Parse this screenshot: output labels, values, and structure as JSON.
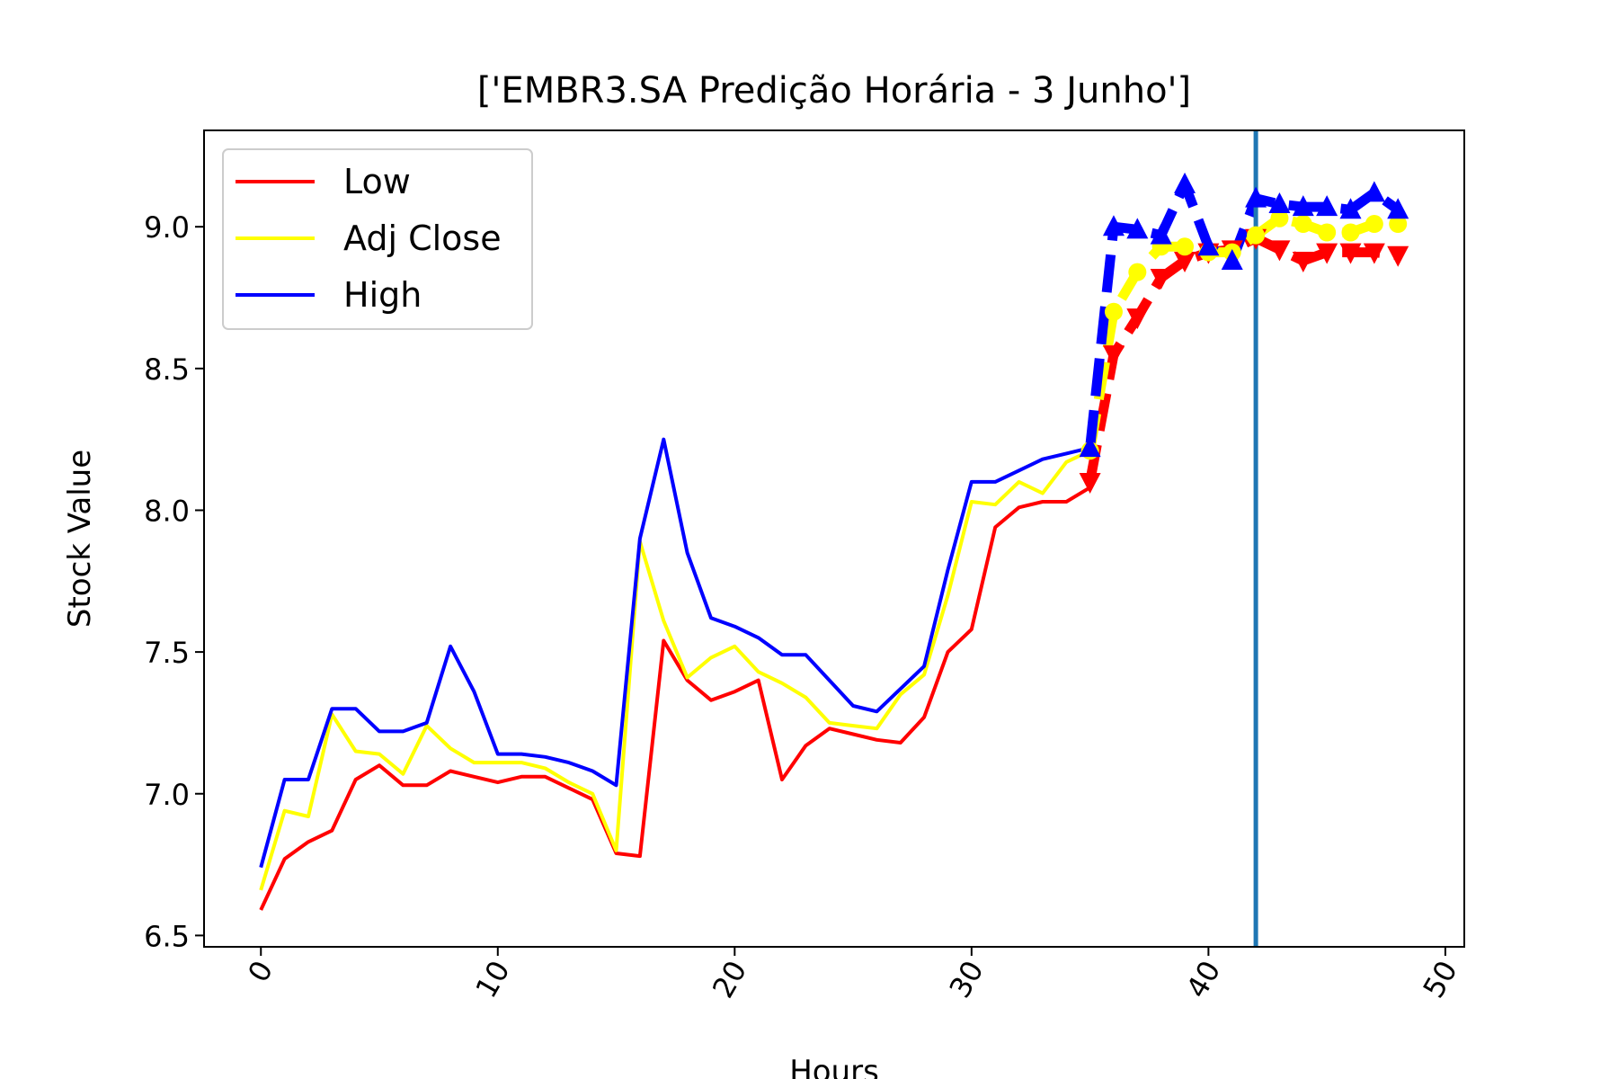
{
  "chart_data": {
    "type": "line",
    "title": "['EMBR3.SA Predição Horária - 3 Junho']",
    "xlabel": "Hours",
    "ylabel": "Stock Value",
    "xlim": [
      -2.4,
      50.8
    ],
    "ylim": [
      6.46,
      9.34
    ],
    "xticks": [
      0,
      10,
      20,
      30,
      40,
      50
    ],
    "xtick_labels": [
      "0",
      "10",
      "20",
      "30",
      "40",
      "50"
    ],
    "yticks": [
      6.5,
      7.0,
      7.5,
      8.0,
      8.5,
      9.0
    ],
    "ytick_labels": [
      "6.5",
      "7.0",
      "7.5",
      "8.0",
      "8.5",
      "9.0"
    ],
    "xtick_rotation": 60,
    "grid": false,
    "legend_position": "top-left",
    "vertical_line": {
      "x": 42,
      "color": "#1f77b4"
    },
    "series": [
      {
        "name": "Low",
        "color": "#ff0000",
        "x": [
          0,
          1,
          2,
          3,
          4,
          5,
          6,
          7,
          8,
          9,
          10,
          11,
          12,
          13,
          14,
          15,
          16,
          17,
          18,
          19,
          20,
          21,
          22,
          23,
          24,
          25,
          26,
          27,
          28,
          29,
          30,
          31,
          32,
          33,
          34,
          35
        ],
        "values": [
          6.59,
          6.77,
          6.83,
          6.87,
          7.05,
          7.1,
          7.03,
          7.03,
          7.08,
          7.06,
          7.04,
          7.06,
          7.06,
          7.02,
          6.98,
          6.79,
          6.78,
          7.54,
          7.4,
          7.33,
          7.36,
          7.4,
          7.05,
          7.17,
          7.23,
          7.21,
          7.19,
          7.18,
          7.27,
          7.5,
          7.58,
          7.94,
          8.01,
          8.03,
          8.03,
          8.08
        ],
        "forecast": {
          "x": [
            35,
            36,
            37,
            38,
            39,
            40,
            41,
            42,
            43,
            44,
            45,
            46,
            47,
            48
          ],
          "values": [
            8.1,
            8.55,
            8.68,
            8.82,
            8.88,
            8.91,
            8.92,
            8.96,
            8.92,
            8.88,
            8.91,
            8.91,
            8.91,
            8.9
          ],
          "marker": "triangle-down"
        }
      },
      {
        "name": "Adj Close",
        "color": "#ffff00",
        "x": [
          0,
          1,
          2,
          3,
          4,
          5,
          6,
          7,
          8,
          9,
          10,
          11,
          12,
          13,
          14,
          15,
          16,
          17,
          18,
          19,
          20,
          21,
          22,
          23,
          24,
          25,
          26,
          27,
          28,
          29,
          30,
          31,
          32,
          33,
          34,
          35
        ],
        "values": [
          6.66,
          6.94,
          6.92,
          7.28,
          7.15,
          7.14,
          7.07,
          7.24,
          7.16,
          7.11,
          7.11,
          7.11,
          7.09,
          7.04,
          7.0,
          6.8,
          7.89,
          7.61,
          7.41,
          7.48,
          7.52,
          7.43,
          7.39,
          7.34,
          7.25,
          7.24,
          7.23,
          7.35,
          7.42,
          7.7,
          8.03,
          8.02,
          8.1,
          8.06,
          8.17,
          8.21
        ],
        "forecast": {
          "x": [
            35,
            36,
            37,
            38,
            39,
            40,
            41,
            42,
            43,
            44,
            45,
            46,
            47,
            48
          ],
          "values": [
            8.21,
            8.7,
            8.84,
            8.93,
            8.93,
            8.91,
            8.91,
            8.97,
            9.03,
            9.01,
            8.98,
            8.98,
            9.01,
            9.01
          ],
          "marker": "circle"
        }
      },
      {
        "name": "High",
        "color": "#0000ff",
        "x": [
          0,
          1,
          2,
          3,
          4,
          5,
          6,
          7,
          8,
          9,
          10,
          11,
          12,
          13,
          14,
          15,
          16,
          17,
          18,
          19,
          20,
          21,
          22,
          23,
          24,
          25,
          26,
          27,
          28,
          29,
          30,
          31,
          32,
          33,
          34,
          35
        ],
        "values": [
          6.74,
          7.05,
          7.05,
          7.3,
          7.3,
          7.22,
          7.22,
          7.25,
          7.52,
          7.36,
          7.14,
          7.14,
          7.13,
          7.11,
          7.08,
          7.03,
          7.9,
          8.25,
          7.85,
          7.62,
          7.59,
          7.55,
          7.49,
          7.49,
          7.4,
          7.31,
          7.29,
          7.37,
          7.45,
          7.79,
          8.1,
          8.1,
          8.14,
          8.18,
          8.2,
          8.22
        ],
        "forecast": {
          "x": [
            35,
            36,
            37,
            38,
            39,
            40,
            41,
            42,
            43,
            44,
            45,
            46,
            47,
            48
          ],
          "values": [
            8.22,
            9.0,
            8.99,
            8.97,
            9.15,
            8.93,
            8.88,
            9.1,
            9.08,
            9.07,
            9.07,
            9.06,
            9.12,
            9.06
          ],
          "marker": "triangle-up"
        }
      }
    ]
  }
}
